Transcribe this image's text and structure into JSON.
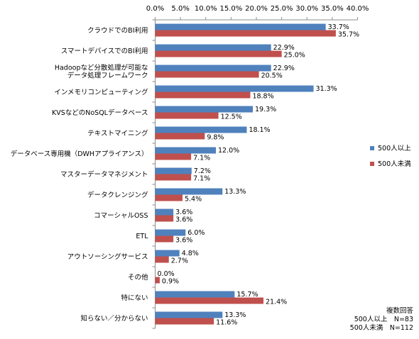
{
  "chart_data": {
    "type": "bar",
    "orientation": "horizontal",
    "xlim": [
      0,
      40
    ],
    "x_tick_labels": [
      "0.0%",
      "5.0%",
      "10.0%",
      "15.0%",
      "20.0%",
      "25.0%",
      "30.0%",
      "35.0%",
      "40.0%"
    ],
    "x_ticks": [
      0,
      5,
      10,
      15,
      20,
      25,
      30,
      35,
      40
    ],
    "x_axis_position": "top",
    "legend_position": "right",
    "grid": false,
    "categories": [
      "クラウドでのBI利用",
      "スマートデバイスでのBI利用",
      "Hadoopなど分散処理が可能な\nデータ処理フレームワーク",
      "インメモリコンピューティング",
      "KVSなどのNoSQLデータベース",
      "テキストマイニング",
      "データベース専用機（DWHアプライアンス）",
      "マスターデータマネジメント",
      "データクレンジング",
      "コマーシャルOSS",
      "ETL",
      "アウトソーシングサービス",
      "その他",
      "特にない",
      "知らない／分からない"
    ],
    "series": [
      {
        "name": "500人以上",
        "color": "#4f81bd",
        "values": [
          33.7,
          22.9,
          22.9,
          31.3,
          19.3,
          18.1,
          12.0,
          7.2,
          13.3,
          3.6,
          6.0,
          4.8,
          0.0,
          15.7,
          13.3
        ],
        "labels": [
          "33.7%",
          "22.9%",
          "22.9%",
          "31.3%",
          "19.3%",
          "18.1%",
          "12.0%",
          "7.2%",
          "13.3%",
          "3.6%",
          "6.0%",
          "4.8%",
          "0.0%",
          "15.7%",
          "13.3%"
        ]
      },
      {
        "name": "500人未満",
        "color": "#c0504d",
        "values": [
          35.7,
          25.0,
          20.5,
          18.8,
          12.5,
          9.8,
          7.1,
          7.1,
          5.4,
          3.6,
          3.6,
          2.7,
          0.9,
          21.4,
          11.6
        ],
        "labels": [
          "35.7%",
          "25.0%",
          "20.5%",
          "18.8%",
          "12.5%",
          "9.8%",
          "7.1%",
          "7.1%",
          "5.4%",
          "3.6%",
          "3.6%",
          "2.7%",
          "0.9%",
          "21.4%",
          "11.6%"
        ]
      }
    ]
  },
  "notes": {
    "line1": "複数回答",
    "line2": "500人以上　N=83",
    "line3": "500人未満　N=112"
  }
}
